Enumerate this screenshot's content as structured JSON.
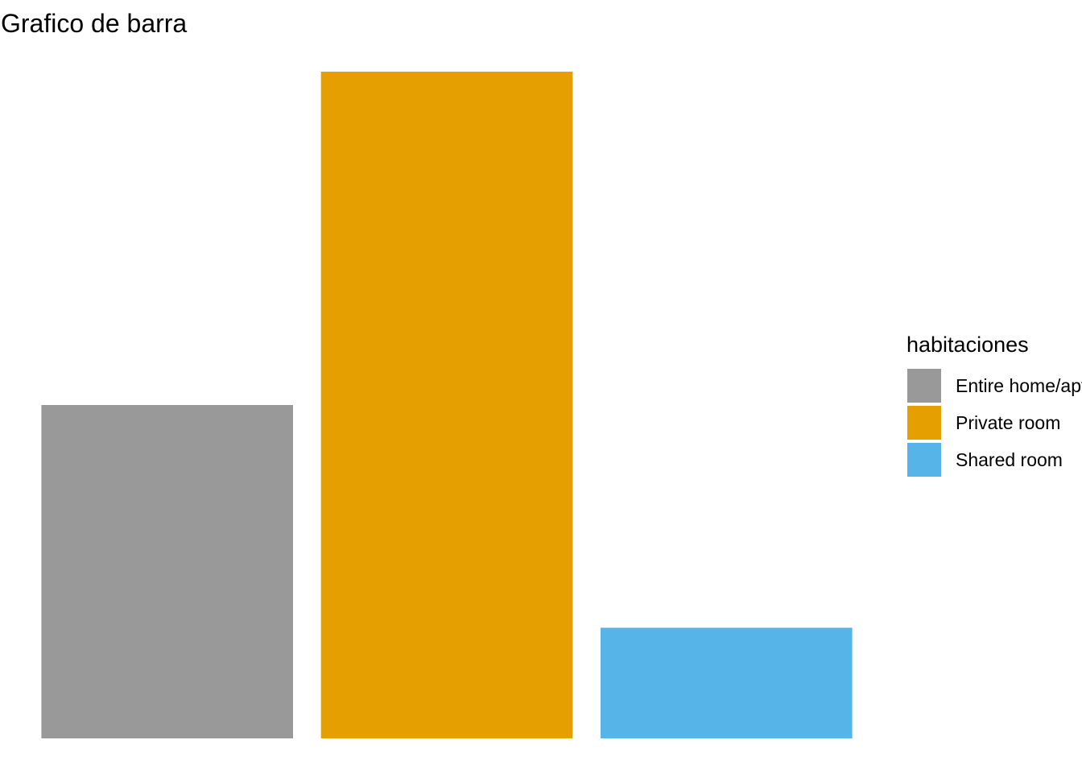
{
  "chart_data": {
    "type": "bar",
    "title": "Grafico de barra",
    "xlabel": "",
    "ylabel": "",
    "categories": [
      "Entire home/apt",
      "Private room",
      "Shared room"
    ],
    "values": [
      50,
      100,
      16.6
    ],
    "colors": [
      "#999999",
      "#E69F00",
      "#56B4E9"
    ],
    "ylim": [
      0,
      100
    ],
    "grid": false,
    "axes_visible": false,
    "legend": {
      "title": "habitaciones",
      "position": "right",
      "items": [
        {
          "label": "Entire home/apt",
          "color": "#999999"
        },
        {
          "label": "Private room",
          "color": "#E69F00"
        },
        {
          "label": "Shared room",
          "color": "#56B4E9"
        }
      ]
    }
  }
}
